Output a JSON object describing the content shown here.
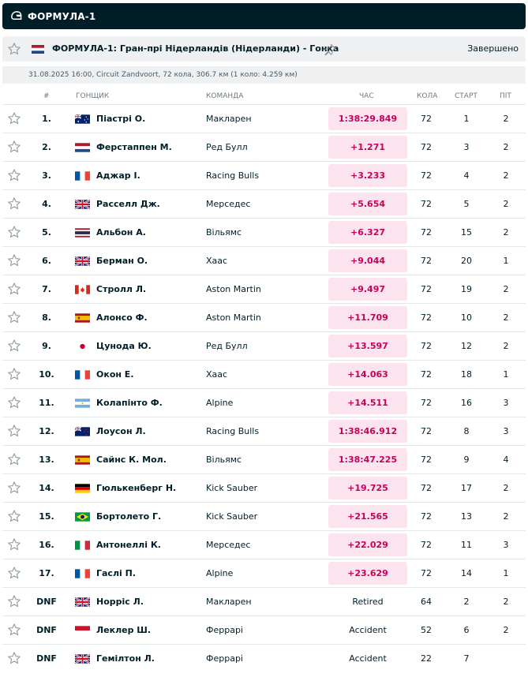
{
  "sport_bar": {
    "title": "ФОРМУЛА-1",
    "icon": "helmet-icon"
  },
  "event": {
    "title": "ФОРМУЛА-1: Гран-прі Нідерландів (Нідерланди) - Гонка",
    "status": "Завершено",
    "info": "31.08.2025 16:00, Circuit Zandvoort, 72 кола, 306.7 км (1 коло: 4.259 км)",
    "flag": "netherlands"
  },
  "columns": {
    "pos": "#",
    "driver": "ГОНЩИК",
    "team": "КОМАНДА",
    "time": "ЧАС",
    "laps": "КОЛА",
    "start": "СТАРТ",
    "pit": "ПІТ"
  },
  "colors": {
    "accent": "#c8005a",
    "time_bg": "#fce4ef",
    "dark": "#001e28"
  },
  "rows": [
    {
      "pos": "1.",
      "flag": "australia",
      "driver": "Піастрі О.",
      "team": "Макларен",
      "time": "1:38:29.849",
      "hl": true,
      "laps": "72",
      "start": "1",
      "pit": "2"
    },
    {
      "pos": "2.",
      "flag": "netherlands",
      "driver": "Ферстаппен М.",
      "team": "Ред Булл",
      "time": "+1.271",
      "hl": true,
      "laps": "72",
      "start": "3",
      "pit": "2"
    },
    {
      "pos": "3.",
      "flag": "france",
      "driver": "Аджар І.",
      "team": "Racing Bulls",
      "time": "+3.233",
      "hl": true,
      "laps": "72",
      "start": "4",
      "pit": "2"
    },
    {
      "pos": "4.",
      "flag": "uk",
      "driver": "Расселл Дж.",
      "team": "Мерседес",
      "time": "+5.654",
      "hl": true,
      "laps": "72",
      "start": "5",
      "pit": "2"
    },
    {
      "pos": "5.",
      "flag": "thailand",
      "driver": "Альбон А.",
      "team": "Вільямс",
      "time": "+6.327",
      "hl": true,
      "laps": "72",
      "start": "15",
      "pit": "2"
    },
    {
      "pos": "6.",
      "flag": "uk",
      "driver": "Берман О.",
      "team": "Хаас",
      "time": "+9.044",
      "hl": true,
      "laps": "72",
      "start": "20",
      "pit": "1"
    },
    {
      "pos": "7.",
      "flag": "canada",
      "driver": "Стролл Л.",
      "team": "Aston Martin",
      "time": "+9.497",
      "hl": true,
      "laps": "72",
      "start": "19",
      "pit": "2"
    },
    {
      "pos": "8.",
      "flag": "spain",
      "driver": "Алонсо Ф.",
      "team": "Aston Martin",
      "time": "+11.709",
      "hl": true,
      "laps": "72",
      "start": "10",
      "pit": "2"
    },
    {
      "pos": "9.",
      "flag": "japan",
      "driver": "Цунода Ю.",
      "team": "Ред Булл",
      "time": "+13.597",
      "hl": true,
      "laps": "72",
      "start": "12",
      "pit": "2"
    },
    {
      "pos": "10.",
      "flag": "france",
      "driver": "Окон Е.",
      "team": "Хаас",
      "time": "+14.063",
      "hl": true,
      "laps": "72",
      "start": "18",
      "pit": "1"
    },
    {
      "pos": "11.",
      "flag": "argentina",
      "driver": "Колапінто Ф.",
      "team": "Alpine",
      "time": "+14.511",
      "hl": true,
      "laps": "72",
      "start": "16",
      "pit": "3"
    },
    {
      "pos": "12.",
      "flag": "newzealand",
      "driver": "Лоусон Л.",
      "team": "Racing Bulls",
      "time": "1:38:46.912",
      "hl": true,
      "laps": "72",
      "start": "8",
      "pit": "3"
    },
    {
      "pos": "13.",
      "flag": "spain",
      "driver": "Сайнс К. Мол.",
      "team": "Вільямс",
      "time": "1:38:47.225",
      "hl": true,
      "laps": "72",
      "start": "9",
      "pit": "4"
    },
    {
      "pos": "14.",
      "flag": "germany",
      "driver": "Гюлькенберг Н.",
      "team": "Kick Sauber",
      "time": "+19.725",
      "hl": true,
      "laps": "72",
      "start": "17",
      "pit": "2"
    },
    {
      "pos": "15.",
      "flag": "brazil",
      "driver": "Бортолето Г.",
      "team": "Kick Sauber",
      "time": "+21.565",
      "hl": true,
      "laps": "72",
      "start": "13",
      "pit": "2"
    },
    {
      "pos": "16.",
      "flag": "italy",
      "driver": "Антонеллі К.",
      "team": "Мерседес",
      "time": "+22.029",
      "hl": true,
      "laps": "72",
      "start": "11",
      "pit": "3"
    },
    {
      "pos": "17.",
      "flag": "france",
      "driver": "Гаслі П.",
      "team": "Alpine",
      "time": "+23.629",
      "hl": true,
      "laps": "72",
      "start": "14",
      "pit": "1"
    },
    {
      "pos": "DNF",
      "flag": "uk",
      "driver": "Норріс Л.",
      "team": "Макларен",
      "time": "Retired",
      "hl": false,
      "laps": "64",
      "start": "2",
      "pit": "2"
    },
    {
      "pos": "DNF",
      "flag": "monaco",
      "driver": "Леклер Ш.",
      "team": "Феррарі",
      "time": "Accident",
      "hl": false,
      "laps": "52",
      "start": "6",
      "pit": "2"
    },
    {
      "pos": "DNF",
      "flag": "uk",
      "driver": "Гемілтон Л.",
      "team": "Феррарі",
      "time": "Accident",
      "hl": false,
      "laps": "22",
      "start": "7",
      "pit": ""
    }
  ]
}
